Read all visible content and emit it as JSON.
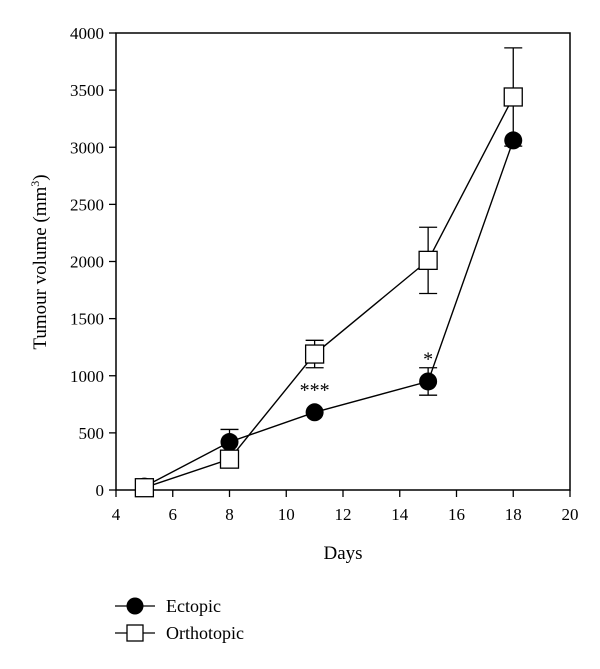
{
  "chart_data": {
    "type": "line",
    "xlabel": "Days",
    "ylabel_main": "Tumour volume (mm",
    "ylabel_sup": "3",
    "ylabel_close": ")",
    "xlim": [
      4,
      20
    ],
    "ylim": [
      0,
      4000
    ],
    "xticks": [
      4,
      6,
      8,
      10,
      12,
      14,
      16,
      18,
      20
    ],
    "yticks": [
      0,
      500,
      1000,
      1500,
      2000,
      2500,
      3000,
      3500,
      4000
    ],
    "grid": false,
    "legend_position": "bottom-left",
    "series": [
      {
        "name": "Ectopic",
        "marker": "filled-circle",
        "points": [
          {
            "x": 5,
            "y": 30,
            "err": 20
          },
          {
            "x": 8,
            "y": 420,
            "err": 110
          },
          {
            "x": 11,
            "y": 680,
            "err": 0
          },
          {
            "x": 15,
            "y": 950,
            "err": 120
          },
          {
            "x": 18,
            "y": 3060,
            "err": 0
          }
        ]
      },
      {
        "name": "Orthotopic",
        "marker": "open-square",
        "points": [
          {
            "x": 5,
            "y": 20,
            "err": 0
          },
          {
            "x": 8,
            "y": 270,
            "err": 0
          },
          {
            "x": 11,
            "y": 1190,
            "err": 120
          },
          {
            "x": 15,
            "y": 2010,
            "err": 290
          },
          {
            "x": 18,
            "y": 3440,
            "err": 430
          }
        ]
      }
    ],
    "annotations": [
      {
        "text": "***",
        "x": 11,
        "y": 680
      },
      {
        "text": "*",
        "x": 15,
        "y": 950
      }
    ]
  }
}
